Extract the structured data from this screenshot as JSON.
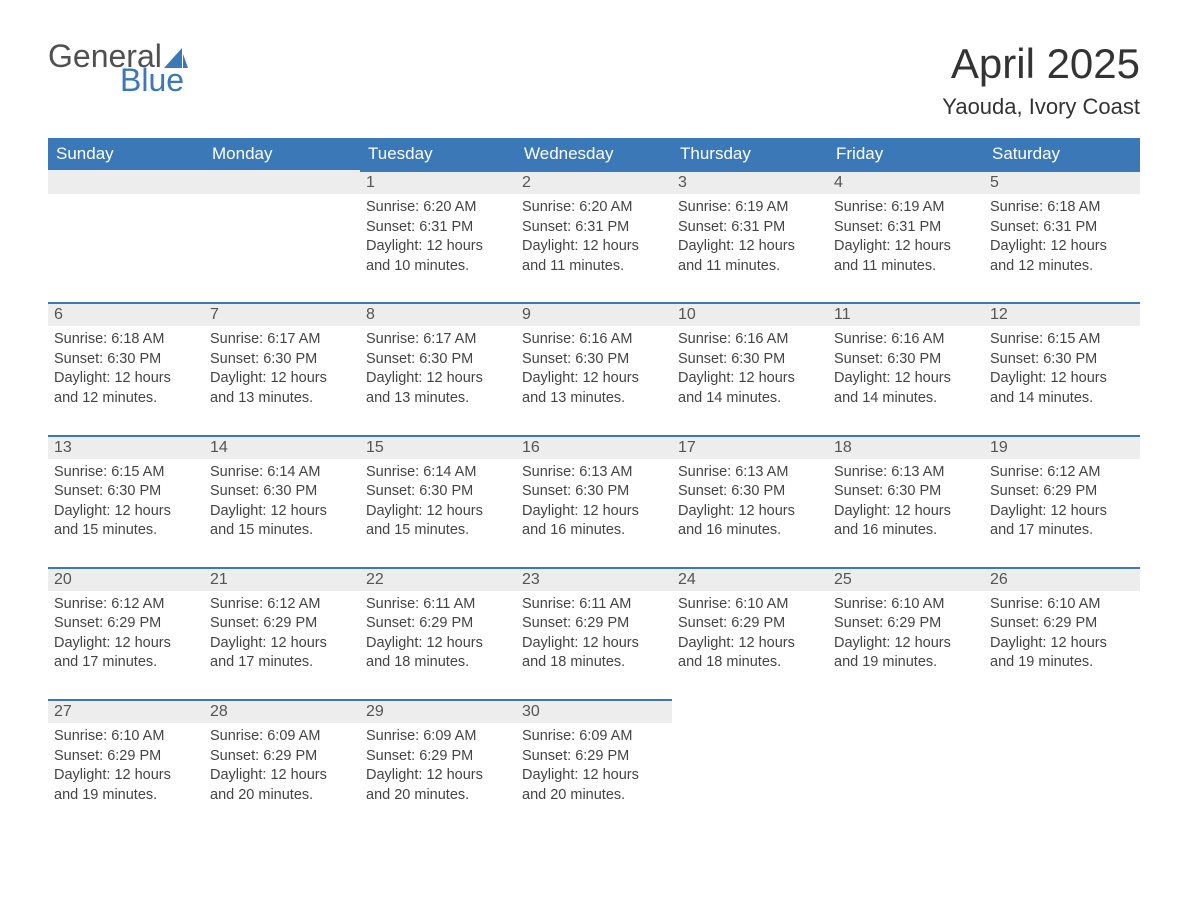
{
  "logo": {
    "text_general": "General",
    "text_blue": "Blue",
    "sail_color": "#3a78b8"
  },
  "title": "April 2025",
  "location": "Yaouda, Ivory Coast",
  "colors": {
    "header_bg": "#3a78b8",
    "header_text": "#ffffff",
    "daynum_bg": "#ededed",
    "daynum_border": "#3a78b8",
    "body_text": "#444444",
    "page_bg": "#ffffff"
  },
  "fonts": {
    "title_size_pt": 42,
    "location_size_pt": 22,
    "weekday_size_pt": 17,
    "daynum_size_pt": 16,
    "body_size_pt": 14.5
  },
  "weekdays": [
    "Sunday",
    "Monday",
    "Tuesday",
    "Wednesday",
    "Thursday",
    "Friday",
    "Saturday"
  ],
  "weeks": [
    [
      {
        "n": "",
        "sunrise": "",
        "sunset": "",
        "daylight": ""
      },
      {
        "n": "",
        "sunrise": "",
        "sunset": "",
        "daylight": ""
      },
      {
        "n": "1",
        "sunrise": "Sunrise: 6:20 AM",
        "sunset": "Sunset: 6:31 PM",
        "daylight": "Daylight: 12 hours and 10 minutes."
      },
      {
        "n": "2",
        "sunrise": "Sunrise: 6:20 AM",
        "sunset": "Sunset: 6:31 PM",
        "daylight": "Daylight: 12 hours and 11 minutes."
      },
      {
        "n": "3",
        "sunrise": "Sunrise: 6:19 AM",
        "sunset": "Sunset: 6:31 PM",
        "daylight": "Daylight: 12 hours and 11 minutes."
      },
      {
        "n": "4",
        "sunrise": "Sunrise: 6:19 AM",
        "sunset": "Sunset: 6:31 PM",
        "daylight": "Daylight: 12 hours and 11 minutes."
      },
      {
        "n": "5",
        "sunrise": "Sunrise: 6:18 AM",
        "sunset": "Sunset: 6:31 PM",
        "daylight": "Daylight: 12 hours and 12 minutes."
      }
    ],
    [
      {
        "n": "6",
        "sunrise": "Sunrise: 6:18 AM",
        "sunset": "Sunset: 6:30 PM",
        "daylight": "Daylight: 12 hours and 12 minutes."
      },
      {
        "n": "7",
        "sunrise": "Sunrise: 6:17 AM",
        "sunset": "Sunset: 6:30 PM",
        "daylight": "Daylight: 12 hours and 13 minutes."
      },
      {
        "n": "8",
        "sunrise": "Sunrise: 6:17 AM",
        "sunset": "Sunset: 6:30 PM",
        "daylight": "Daylight: 12 hours and 13 minutes."
      },
      {
        "n": "9",
        "sunrise": "Sunrise: 6:16 AM",
        "sunset": "Sunset: 6:30 PM",
        "daylight": "Daylight: 12 hours and 13 minutes."
      },
      {
        "n": "10",
        "sunrise": "Sunrise: 6:16 AM",
        "sunset": "Sunset: 6:30 PM",
        "daylight": "Daylight: 12 hours and 14 minutes."
      },
      {
        "n": "11",
        "sunrise": "Sunrise: 6:16 AM",
        "sunset": "Sunset: 6:30 PM",
        "daylight": "Daylight: 12 hours and 14 minutes."
      },
      {
        "n": "12",
        "sunrise": "Sunrise: 6:15 AM",
        "sunset": "Sunset: 6:30 PM",
        "daylight": "Daylight: 12 hours and 14 minutes."
      }
    ],
    [
      {
        "n": "13",
        "sunrise": "Sunrise: 6:15 AM",
        "sunset": "Sunset: 6:30 PM",
        "daylight": "Daylight: 12 hours and 15 minutes."
      },
      {
        "n": "14",
        "sunrise": "Sunrise: 6:14 AM",
        "sunset": "Sunset: 6:30 PM",
        "daylight": "Daylight: 12 hours and 15 minutes."
      },
      {
        "n": "15",
        "sunrise": "Sunrise: 6:14 AM",
        "sunset": "Sunset: 6:30 PM",
        "daylight": "Daylight: 12 hours and 15 minutes."
      },
      {
        "n": "16",
        "sunrise": "Sunrise: 6:13 AM",
        "sunset": "Sunset: 6:30 PM",
        "daylight": "Daylight: 12 hours and 16 minutes."
      },
      {
        "n": "17",
        "sunrise": "Sunrise: 6:13 AM",
        "sunset": "Sunset: 6:30 PM",
        "daylight": "Daylight: 12 hours and 16 minutes."
      },
      {
        "n": "18",
        "sunrise": "Sunrise: 6:13 AM",
        "sunset": "Sunset: 6:30 PM",
        "daylight": "Daylight: 12 hours and 16 minutes."
      },
      {
        "n": "19",
        "sunrise": "Sunrise: 6:12 AM",
        "sunset": "Sunset: 6:29 PM",
        "daylight": "Daylight: 12 hours and 17 minutes."
      }
    ],
    [
      {
        "n": "20",
        "sunrise": "Sunrise: 6:12 AM",
        "sunset": "Sunset: 6:29 PM",
        "daylight": "Daylight: 12 hours and 17 minutes."
      },
      {
        "n": "21",
        "sunrise": "Sunrise: 6:12 AM",
        "sunset": "Sunset: 6:29 PM",
        "daylight": "Daylight: 12 hours and 17 minutes."
      },
      {
        "n": "22",
        "sunrise": "Sunrise: 6:11 AM",
        "sunset": "Sunset: 6:29 PM",
        "daylight": "Daylight: 12 hours and 18 minutes."
      },
      {
        "n": "23",
        "sunrise": "Sunrise: 6:11 AM",
        "sunset": "Sunset: 6:29 PM",
        "daylight": "Daylight: 12 hours and 18 minutes."
      },
      {
        "n": "24",
        "sunrise": "Sunrise: 6:10 AM",
        "sunset": "Sunset: 6:29 PM",
        "daylight": "Daylight: 12 hours and 18 minutes."
      },
      {
        "n": "25",
        "sunrise": "Sunrise: 6:10 AM",
        "sunset": "Sunset: 6:29 PM",
        "daylight": "Daylight: 12 hours and 19 minutes."
      },
      {
        "n": "26",
        "sunrise": "Sunrise: 6:10 AM",
        "sunset": "Sunset: 6:29 PM",
        "daylight": "Daylight: 12 hours and 19 minutes."
      }
    ],
    [
      {
        "n": "27",
        "sunrise": "Sunrise: 6:10 AM",
        "sunset": "Sunset: 6:29 PM",
        "daylight": "Daylight: 12 hours and 19 minutes."
      },
      {
        "n": "28",
        "sunrise": "Sunrise: 6:09 AM",
        "sunset": "Sunset: 6:29 PM",
        "daylight": "Daylight: 12 hours and 20 minutes."
      },
      {
        "n": "29",
        "sunrise": "Sunrise: 6:09 AM",
        "sunset": "Sunset: 6:29 PM",
        "daylight": "Daylight: 12 hours and 20 minutes."
      },
      {
        "n": "30",
        "sunrise": "Sunrise: 6:09 AM",
        "sunset": "Sunset: 6:29 PM",
        "daylight": "Daylight: 12 hours and 20 minutes."
      },
      {
        "n": "",
        "sunrise": "",
        "sunset": "",
        "daylight": ""
      },
      {
        "n": "",
        "sunrise": "",
        "sunset": "",
        "daylight": ""
      },
      {
        "n": "",
        "sunrise": "",
        "sunset": "",
        "daylight": ""
      }
    ]
  ]
}
